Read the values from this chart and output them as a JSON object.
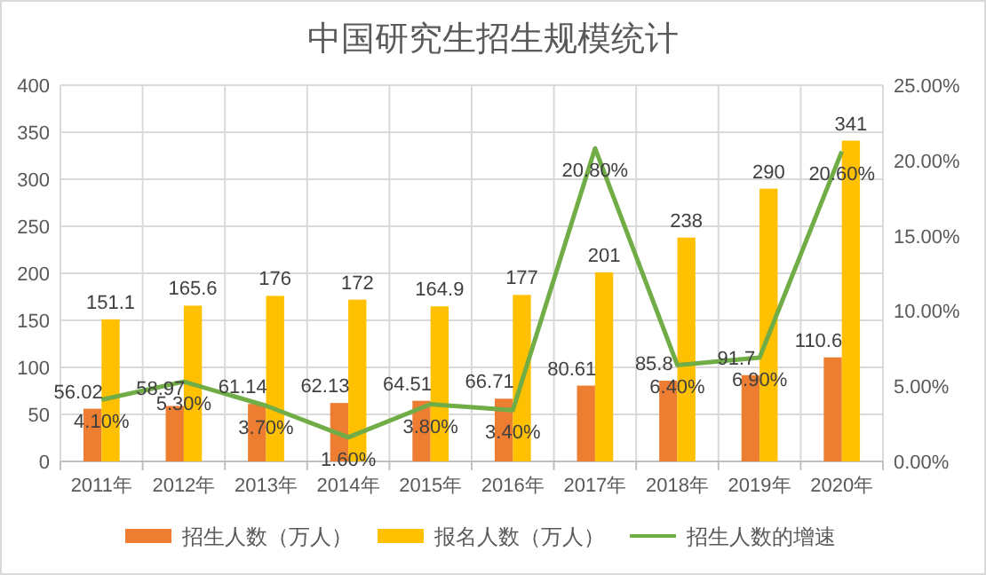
{
  "chart_data": {
    "type": "bar",
    "title": "中国研究生招生规模统计",
    "categories": [
      "2011年",
      "2012年",
      "2013年",
      "2014年",
      "2015年",
      "2016年",
      "2017年",
      "2018年",
      "2019年",
      "2020年"
    ],
    "series": [
      {
        "name": "招生人数（万人）",
        "color": "#ed7d31",
        "values": [
          56.02,
          58.97,
          61.14,
          62.13,
          64.51,
          66.71,
          80.61,
          85.8,
          91.7,
          110.6
        ]
      },
      {
        "name": "报名人数（万人）",
        "color": "#ffc000",
        "values": [
          151.1,
          165.6,
          176,
          172,
          164.9,
          177,
          201,
          238,
          290,
          341
        ]
      },
      {
        "name": "招生人数的增速",
        "type": "line",
        "axis": "y2",
        "color": "#70ad47",
        "values": [
          4.1,
          5.3,
          3.7,
          1.6,
          3.8,
          3.4,
          20.8,
          6.4,
          6.9,
          20.6
        ],
        "value_labels": [
          "4.10%",
          "5.30%",
          "3.70%",
          "1.60%",
          "3.80%",
          "3.40%",
          "20.80%",
          "6.40%",
          "6.90%",
          "20.60%"
        ]
      }
    ],
    "ylim": [
      0,
      400
    ],
    "yticks": [
      0,
      50,
      100,
      150,
      200,
      250,
      300,
      350,
      400
    ],
    "y2lim": [
      0,
      25
    ],
    "y2ticks": [
      {
        "value": 0,
        "label": "0.00%"
      },
      {
        "value": 5,
        "label": "5.00%"
      },
      {
        "value": 10,
        "label": "10.00%"
      },
      {
        "value": 15,
        "label": "15.00%"
      },
      {
        "value": 20,
        "label": "20.00%"
      },
      {
        "value": 25,
        "label": "25.00%"
      }
    ],
    "grid": true,
    "data_labels": true,
    "legend": "bottom"
  }
}
